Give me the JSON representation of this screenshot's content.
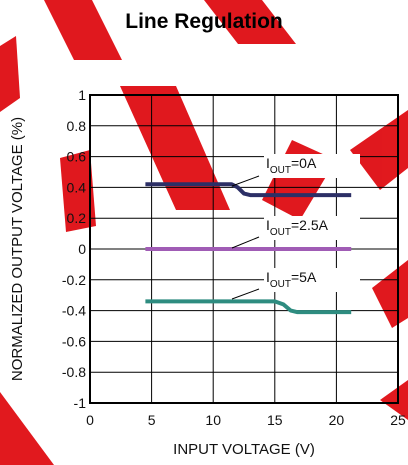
{
  "chart_data": {
    "type": "line",
    "title": "Line Regulation",
    "xlabel": "INPUT VOLTAGE (V)",
    "ylabel": "NORMALIZED OUTPUT VOLTAGE (%)",
    "xlim": [
      0,
      25
    ],
    "ylim": [
      -1,
      1
    ],
    "x_ticks": [
      0,
      5,
      10,
      15,
      20,
      25
    ],
    "y_ticks": [
      -1,
      -0.8,
      -0.6,
      -0.4,
      -0.2,
      0,
      0.2,
      0.4,
      0.6,
      0.8,
      1
    ],
    "x_tick_labels": [
      "0",
      "5",
      "10",
      "15",
      "20",
      "25"
    ],
    "y_tick_labels": [
      "-1",
      "-0.8",
      "-0.6",
      "-0.4",
      "-0.2",
      "0",
      "0.2",
      "0.4",
      "0.6",
      "0.8",
      "1"
    ],
    "grid": true,
    "series": [
      {
        "name": "IOUT=0A",
        "label_main": "I",
        "label_sub": "OUT",
        "label_tail": "=0A",
        "color": "#2c2f66",
        "x": [
          4.5,
          11.5,
          12.0,
          12.5,
          13.0,
          21.2
        ],
        "y": [
          0.42,
          0.42,
          0.4,
          0.36,
          0.35,
          0.35
        ]
      },
      {
        "name": "IOUT=2.5A",
        "label_main": "I",
        "label_sub": "OUT",
        "label_tail": "=2.5A",
        "color": "#a05cb5",
        "x": [
          4.5,
          21.2
        ],
        "y": [
          0.0,
          0.0
        ]
      },
      {
        "name": "IOUT=5A",
        "label_main": "I",
        "label_sub": "OUT",
        "label_tail": "=5A",
        "color": "#2e8c80",
        "x": [
          4.5,
          15.0,
          15.7,
          16.3,
          16.8,
          21.2
        ],
        "y": [
          -0.34,
          -0.34,
          -0.36,
          -0.4,
          -0.41,
          -0.41
        ]
      }
    ]
  },
  "watermark": {
    "color": "#e0141a",
    "form": "large red diagonal letters"
  }
}
